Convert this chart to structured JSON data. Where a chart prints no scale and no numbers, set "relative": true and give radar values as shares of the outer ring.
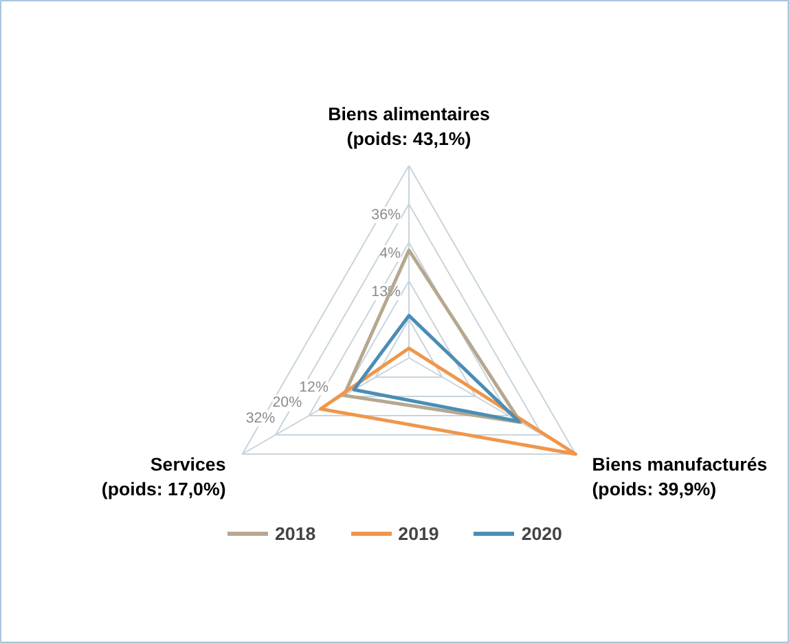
{
  "chart_data": {
    "type": "radar",
    "relative": true,
    "grid": true,
    "legend": "bottom",
    "categories": [
      "Biens alimentaires\n(poids: 43,1%)",
      "Biens manufacturés\n(poids: 39,9%)",
      "Services\n(poids: 17,0%)"
    ],
    "series": [
      {
        "name": "2018",
        "color": "#b5a88f",
        "values": [
          0.56,
          0.67,
          0.39
        ]
      },
      {
        "name": "2019",
        "color": "#f0964a",
        "values": [
          0.05,
          1.0,
          0.53
        ]
      },
      {
        "name": "2020",
        "color": "#4a8db5",
        "values": [
          0.22,
          0.66,
          0.33
        ]
      }
    ],
    "annotations": [
      "36%",
      "4%",
      "13%",
      "12%",
      "20%",
      "32%"
    ]
  }
}
